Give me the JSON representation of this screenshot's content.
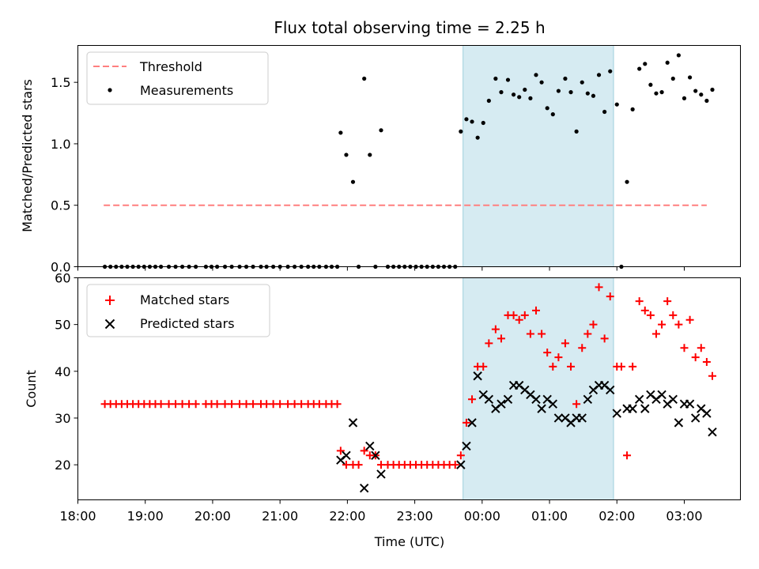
{
  "chart_data": [
    {
      "type": "scatter",
      "title": "Flux total observing time = 2.25 h",
      "xlabel": "",
      "ylabel": "Matched/Predicted stars",
      "xlim": [
        "18:00",
        "03:50"
      ],
      "ylim": [
        0,
        1.8
      ],
      "yticks": [
        0.0,
        0.5,
        1.0,
        1.5
      ],
      "ytick_labels": [
        "0.0",
        "0.5",
        "1.0",
        "1.5"
      ],
      "shaded_span": {
        "from": "23:43",
        "to": "01:57",
        "color": "#add8e6"
      },
      "legend_position": "upper-left",
      "threshold": {
        "name": "Threshold",
        "value": 0.5,
        "from": "18:23",
        "to": "03:20",
        "color": "#ff7f7f"
      },
      "series": [
        {
          "name": "Measurements",
          "color": "#000000",
          "marker": "dot",
          "points": [
            [
              "18:24",
              0
            ],
            [
              "18:29",
              0
            ],
            [
              "18:34",
              0
            ],
            [
              "18:39",
              0
            ],
            [
              "18:44",
              0
            ],
            [
              "18:49",
              0
            ],
            [
              "18:54",
              0
            ],
            [
              "18:59",
              0
            ],
            [
              "19:04",
              0
            ],
            [
              "19:09",
              0
            ],
            [
              "19:14",
              0
            ],
            [
              "19:21",
              0
            ],
            [
              "19:27",
              0
            ],
            [
              "19:33",
              0
            ],
            [
              "19:39",
              0
            ],
            [
              "19:45",
              0
            ],
            [
              "19:54",
              0
            ],
            [
              "19:59",
              0
            ],
            [
              "20:04",
              0
            ],
            [
              "20:11",
              0
            ],
            [
              "20:17",
              0
            ],
            [
              "20:24",
              0
            ],
            [
              "20:30",
              0
            ],
            [
              "20:36",
              0
            ],
            [
              "20:43",
              0
            ],
            [
              "20:48",
              0
            ],
            [
              "20:54",
              0
            ],
            [
              "21:00",
              0
            ],
            [
              "21:07",
              0
            ],
            [
              "21:13",
              0
            ],
            [
              "21:19",
              0
            ],
            [
              "21:25",
              0
            ],
            [
              "21:30",
              0
            ],
            [
              "21:35",
              0
            ],
            [
              "21:41",
              0
            ],
            [
              "21:46",
              0
            ],
            [
              "21:51",
              0
            ],
            [
              "21:54",
              1.09
            ],
            [
              "21:59",
              0.91
            ],
            [
              "22:05",
              0.69
            ],
            [
              "22:10",
              0
            ],
            [
              "22:15",
              1.53
            ],
            [
              "22:20",
              0.91
            ],
            [
              "22:25",
              0
            ],
            [
              "22:30",
              1.11
            ],
            [
              "22:36",
              0
            ],
            [
              "22:41",
              0
            ],
            [
              "22:46",
              0
            ],
            [
              "22:51",
              0
            ],
            [
              "22:56",
              0
            ],
            [
              "23:01",
              0
            ],
            [
              "23:06",
              0
            ],
            [
              "23:11",
              0
            ],
            [
              "23:16",
              0
            ],
            [
              "23:21",
              0
            ],
            [
              "23:26",
              0
            ],
            [
              "23:31",
              0
            ],
            [
              "23:36",
              0
            ],
            [
              "23:41",
              1.1
            ],
            [
              "23:46",
              1.2
            ],
            [
              "23:51",
              1.18
            ],
            [
              "23:56",
              1.05
            ],
            [
              "00:01",
              1.17
            ],
            [
              "00:06",
              1.35
            ],
            [
              "00:12",
              1.53
            ],
            [
              "00:17",
              1.42
            ],
            [
              "00:23",
              1.52
            ],
            [
              "00:28",
              1.4
            ],
            [
              "00:33",
              1.38
            ],
            [
              "00:38",
              1.44
            ],
            [
              "00:43",
              1.37
            ],
            [
              "00:48",
              1.56
            ],
            [
              "00:53",
              1.5
            ],
            [
              "00:58",
              1.29
            ],
            [
              "01:03",
              1.24
            ],
            [
              "01:08",
              1.43
            ],
            [
              "01:14",
              1.53
            ],
            [
              "01:19",
              1.42
            ],
            [
              "01:24",
              1.1
            ],
            [
              "01:29",
              1.5
            ],
            [
              "01:34",
              1.41
            ],
            [
              "01:39",
              1.39
            ],
            [
              "01:44",
              1.56
            ],
            [
              "01:49",
              1.26
            ],
            [
              "01:54",
              1.59
            ],
            [
              "02:00",
              1.32
            ],
            [
              "02:04",
              0
            ],
            [
              "02:09",
              0.69
            ],
            [
              "02:14",
              1.28
            ],
            [
              "02:20",
              1.61
            ],
            [
              "02:25",
              1.65
            ],
            [
              "02:30",
              1.48
            ],
            [
              "02:35",
              1.41
            ],
            [
              "02:40",
              1.42
            ],
            [
              "02:45",
              1.66
            ],
            [
              "02:50",
              1.53
            ],
            [
              "02:55",
              1.72
            ],
            [
              "03:00",
              1.37
            ],
            [
              "03:05",
              1.54
            ],
            [
              "03:10",
              1.43
            ],
            [
              "03:15",
              1.4
            ],
            [
              "03:20",
              1.35
            ],
            [
              "03:25",
              1.44
            ]
          ]
        }
      ]
    },
    {
      "type": "scatter",
      "title": "",
      "xlabel": "Time (UTC)",
      "ylabel": "Count",
      "xlim": [
        "18:00",
        "03:50"
      ],
      "ylim": [
        12.5,
        60
      ],
      "yticks": [
        20,
        30,
        40,
        50,
        60
      ],
      "ytick_labels": [
        "20",
        "30",
        "40",
        "50",
        "60"
      ],
      "xticks": [
        "18:00",
        "19:00",
        "20:00",
        "21:00",
        "22:00",
        "23:00",
        "00:00",
        "01:00",
        "02:00",
        "03:00"
      ],
      "xtick_labels": [
        "18:00",
        "19:00",
        "20:00",
        "21:00",
        "22:00",
        "23:00",
        "00:00",
        "01:00",
        "02:00",
        "03:00"
      ],
      "shaded_span": {
        "from": "23:43",
        "to": "01:57",
        "color": "#add8e6"
      },
      "legend_position": "upper-left",
      "series": [
        {
          "name": "Matched stars",
          "color": "#ff0000",
          "marker": "plus",
          "points": [
            [
              "18:24",
              33
            ],
            [
              "18:29",
              33
            ],
            [
              "18:34",
              33
            ],
            [
              "18:39",
              33
            ],
            [
              "18:44",
              33
            ],
            [
              "18:49",
              33
            ],
            [
              "18:54",
              33
            ],
            [
              "18:59",
              33
            ],
            [
              "19:04",
              33
            ],
            [
              "19:09",
              33
            ],
            [
              "19:14",
              33
            ],
            [
              "19:21",
              33
            ],
            [
              "19:27",
              33
            ],
            [
              "19:33",
              33
            ],
            [
              "19:39",
              33
            ],
            [
              "19:45",
              33
            ],
            [
              "19:54",
              33
            ],
            [
              "19:59",
              33
            ],
            [
              "20:04",
              33
            ],
            [
              "20:11",
              33
            ],
            [
              "20:17",
              33
            ],
            [
              "20:24",
              33
            ],
            [
              "20:30",
              33
            ],
            [
              "20:36",
              33
            ],
            [
              "20:43",
              33
            ],
            [
              "20:48",
              33
            ],
            [
              "20:54",
              33
            ],
            [
              "21:00",
              33
            ],
            [
              "21:07",
              33
            ],
            [
              "21:13",
              33
            ],
            [
              "21:19",
              33
            ],
            [
              "21:25",
              33
            ],
            [
              "21:30",
              33
            ],
            [
              "21:35",
              33
            ],
            [
              "21:41",
              33
            ],
            [
              "21:46",
              33
            ],
            [
              "21:51",
              33
            ],
            [
              "21:54",
              23
            ],
            [
              "21:59",
              20
            ],
            [
              "22:05",
              20
            ],
            [
              "22:10",
              20
            ],
            [
              "22:15",
              23
            ],
            [
              "22:20",
              22
            ],
            [
              "22:25",
              22
            ],
            [
              "22:30",
              20
            ],
            [
              "22:36",
              20
            ],
            [
              "22:41",
              20
            ],
            [
              "22:46",
              20
            ],
            [
              "22:51",
              20
            ],
            [
              "22:56",
              20
            ],
            [
              "23:01",
              20
            ],
            [
              "23:06",
              20
            ],
            [
              "23:11",
              20
            ],
            [
              "23:16",
              20
            ],
            [
              "23:21",
              20
            ],
            [
              "23:26",
              20
            ],
            [
              "23:31",
              20
            ],
            [
              "23:36",
              20
            ],
            [
              "23:41",
              22
            ],
            [
              "23:46",
              29
            ],
            [
              "23:51",
              34
            ],
            [
              "23:56",
              41
            ],
            [
              "00:01",
              41
            ],
            [
              "00:06",
              46
            ],
            [
              "00:12",
              49
            ],
            [
              "00:17",
              47
            ],
            [
              "00:23",
              52
            ],
            [
              "00:28",
              52
            ],
            [
              "00:33",
              51
            ],
            [
              "00:38",
              52
            ],
            [
              "00:43",
              48
            ],
            [
              "00:48",
              53
            ],
            [
              "00:53",
              48
            ],
            [
              "00:58",
              44
            ],
            [
              "01:03",
              41
            ],
            [
              "01:08",
              43
            ],
            [
              "01:14",
              46
            ],
            [
              "01:19",
              41
            ],
            [
              "01:24",
              33
            ],
            [
              "01:29",
              45
            ],
            [
              "01:34",
              48
            ],
            [
              "01:39",
              50
            ],
            [
              "01:44",
              58
            ],
            [
              "01:49",
              47
            ],
            [
              "01:54",
              56
            ],
            [
              "02:00",
              41
            ],
            [
              "02:04",
              41
            ],
            [
              "02:09",
              22
            ],
            [
              "02:14",
              41
            ],
            [
              "02:20",
              55
            ],
            [
              "02:25",
              53
            ],
            [
              "02:30",
              52
            ],
            [
              "02:35",
              48
            ],
            [
              "02:40",
              50
            ],
            [
              "02:45",
              55
            ],
            [
              "02:50",
              52
            ],
            [
              "02:55",
              50
            ],
            [
              "03:00",
              45
            ],
            [
              "03:05",
              51
            ],
            [
              "03:10",
              43
            ],
            [
              "03:15",
              45
            ],
            [
              "03:20",
              42
            ],
            [
              "03:25",
              39
            ]
          ]
        },
        {
          "name": "Predicted stars",
          "color": "#000000",
          "marker": "x",
          "points": [
            [
              "21:54",
              21
            ],
            [
              "21:59",
              22
            ],
            [
              "22:05",
              29
            ],
            [
              "22:15",
              15
            ],
            [
              "22:20",
              24
            ],
            [
              "22:25",
              22
            ],
            [
              "22:30",
              18
            ],
            [
              "23:41",
              20
            ],
            [
              "23:46",
              24
            ],
            [
              "23:51",
              29
            ],
            [
              "23:56",
              39
            ],
            [
              "00:01",
              35
            ],
            [
              "00:06",
              34
            ],
            [
              "00:12",
              32
            ],
            [
              "00:17",
              33
            ],
            [
              "00:23",
              34
            ],
            [
              "00:28",
              37
            ],
            [
              "00:33",
              37
            ],
            [
              "00:38",
              36
            ],
            [
              "00:43",
              35
            ],
            [
              "00:48",
              34
            ],
            [
              "00:53",
              32
            ],
            [
              "00:58",
              34
            ],
            [
              "01:03",
              33
            ],
            [
              "01:08",
              30
            ],
            [
              "01:14",
              30
            ],
            [
              "01:19",
              29
            ],
            [
              "01:24",
              30
            ],
            [
              "01:29",
              30
            ],
            [
              "01:34",
              34
            ],
            [
              "01:39",
              36
            ],
            [
              "01:44",
              37
            ],
            [
              "01:49",
              37
            ],
            [
              "01:54",
              36
            ],
            [
              "02:00",
              31
            ],
            [
              "02:09",
              32
            ],
            [
              "02:14",
              32
            ],
            [
              "02:20",
              34
            ],
            [
              "02:25",
              32
            ],
            [
              "02:30",
              35
            ],
            [
              "02:35",
              34
            ],
            [
              "02:40",
              35
            ],
            [
              "02:45",
              33
            ],
            [
              "02:50",
              34
            ],
            [
              "02:55",
              29
            ],
            [
              "03:00",
              33
            ],
            [
              "03:05",
              33
            ],
            [
              "03:10",
              30
            ],
            [
              "03:15",
              32
            ],
            [
              "03:20",
              31
            ],
            [
              "03:25",
              27
            ]
          ]
        }
      ]
    }
  ]
}
